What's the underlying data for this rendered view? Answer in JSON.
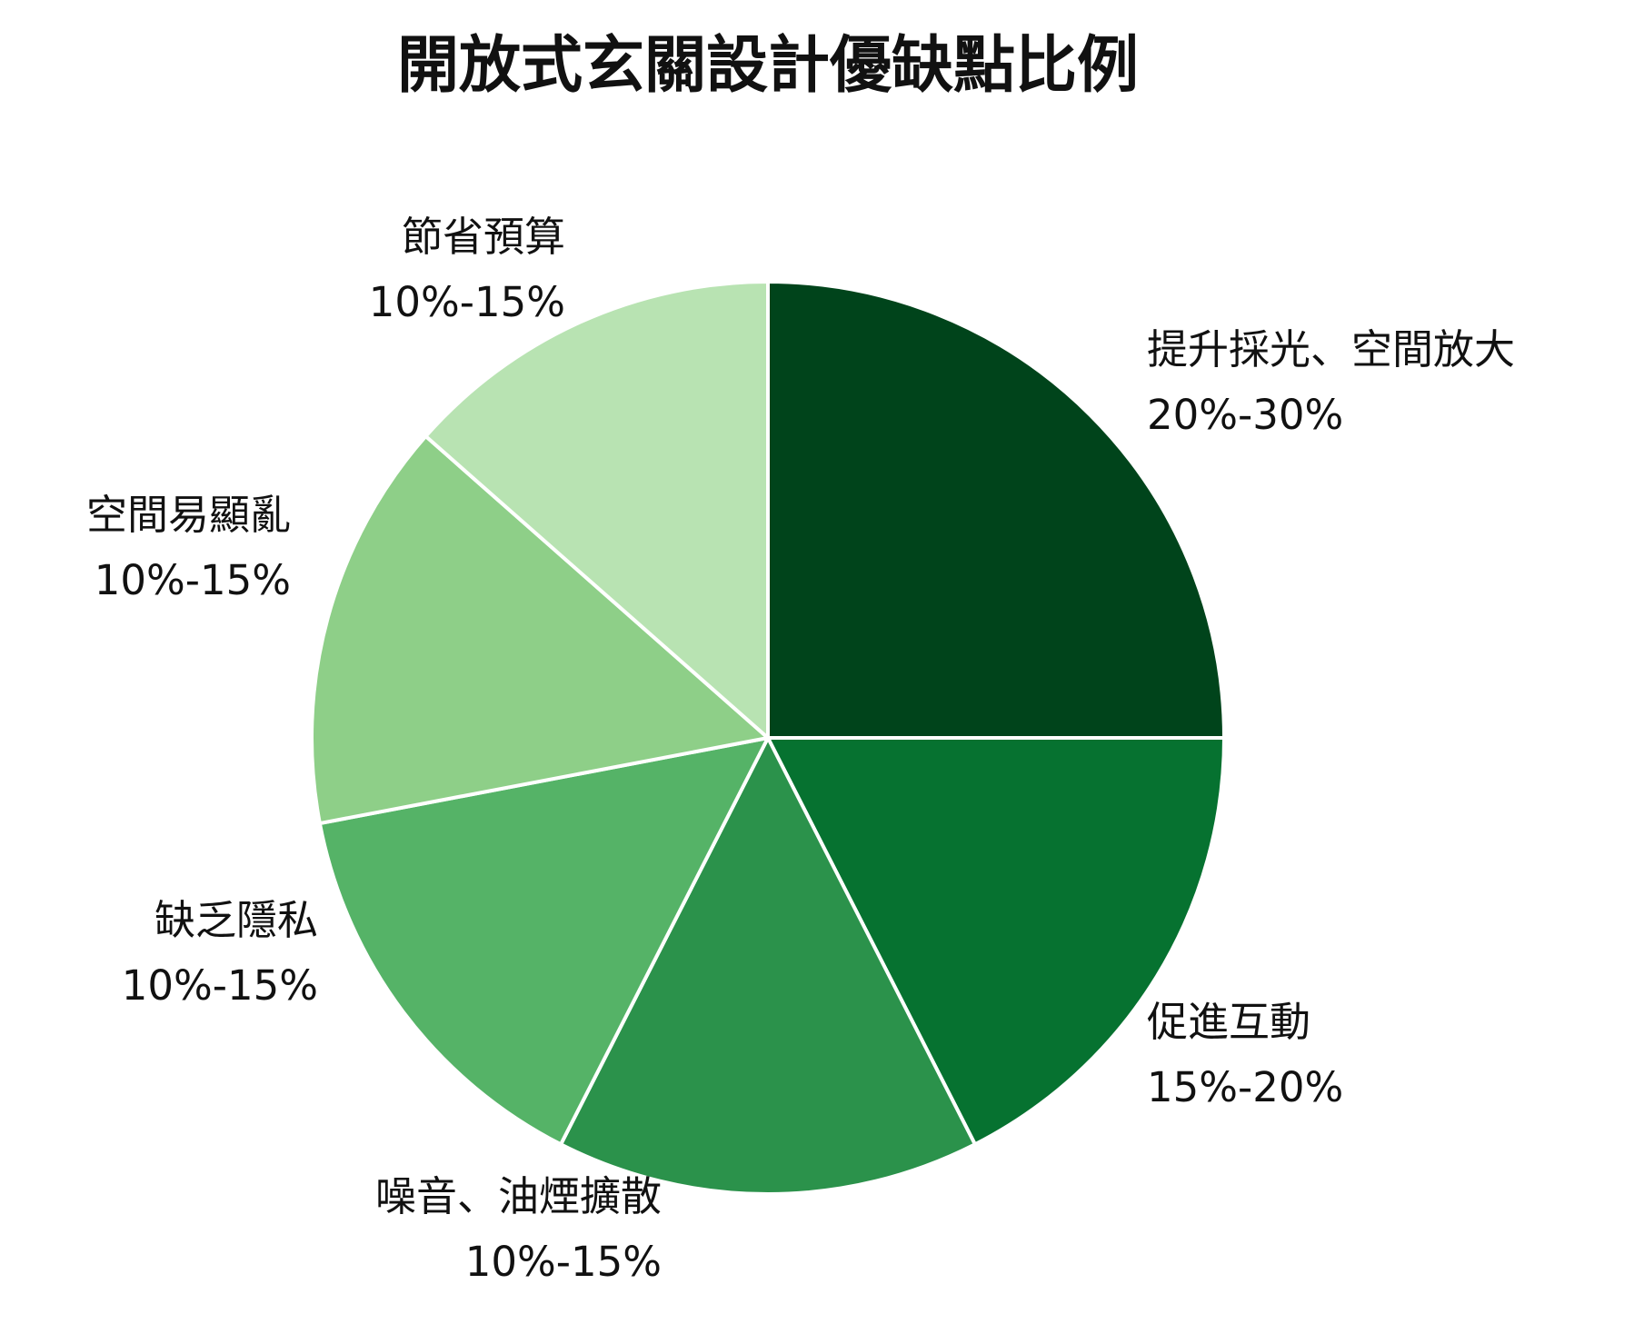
{
  "chart_data": {
    "type": "pie",
    "title": "開放式玄關設計優缺點比例",
    "slices": [
      {
        "label": "提升採光、空間放大",
        "range": "20%-30%",
        "value": 25,
        "color": "#00441b"
      },
      {
        "label": "促進互動",
        "range": "15%-20%",
        "value": 17.5,
        "color": "#067230"
      },
      {
        "label": "噪音、油煙擴散",
        "range": "10%-15%",
        "value": 15,
        "color": "#2b924b"
      },
      {
        "label": "缺乏隱私",
        "range": "10%-15%",
        "value": 14.5,
        "color": "#55b367"
      },
      {
        "label": "空間易顯亂",
        "range": "10%-15%",
        "value": 14.5,
        "color": "#8ecf88"
      },
      {
        "label": "節省預算",
        "range": "10%-15%",
        "value": 13.5,
        "color": "#b8e3b2"
      }
    ],
    "start_angle": "top",
    "direction": "clockwise",
    "legend": "none",
    "slice_border": "#ffffff"
  }
}
